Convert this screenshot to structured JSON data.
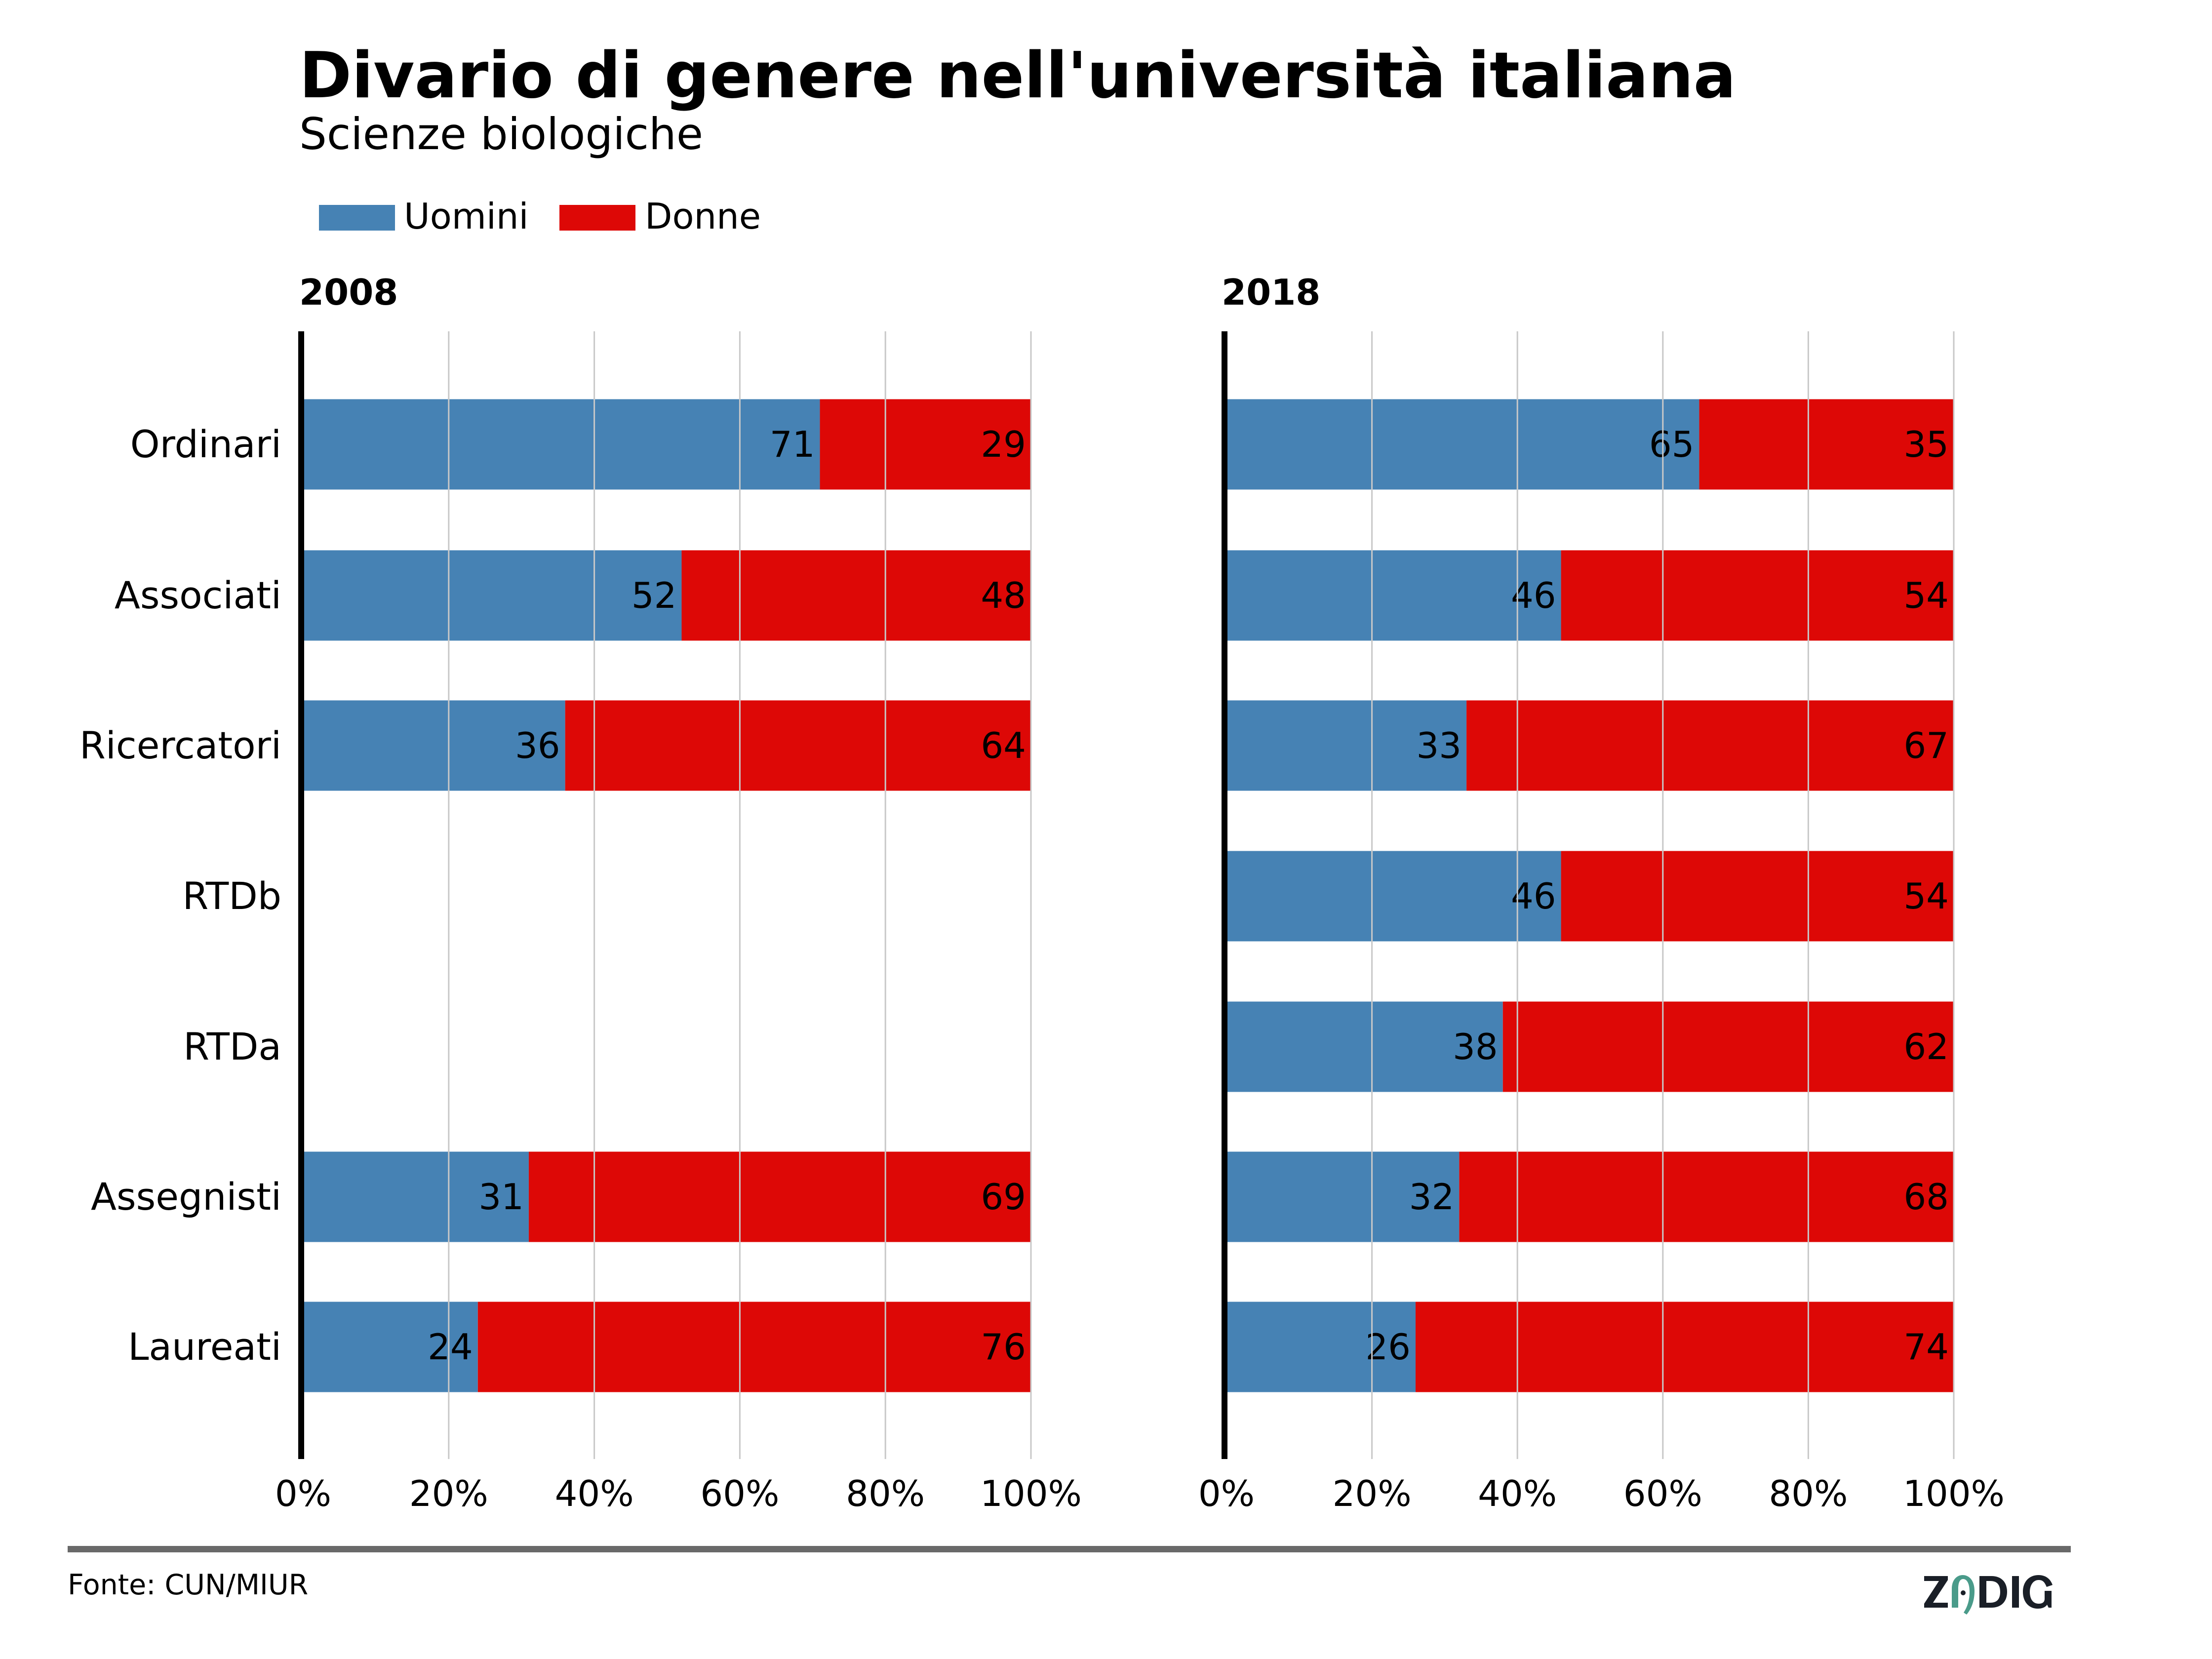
{
  "header": {
    "title": "Divario di genere nell'università italiana",
    "subtitle": "Scienze biologiche"
  },
  "legend": [
    {
      "label": "Uomini",
      "color": "#4682b4"
    },
    {
      "label": "Donne",
      "color": "#dd0806"
    }
  ],
  "footer": {
    "source": "Fonte: CUN/MIUR",
    "logo_text": "ZADIG",
    "logo_colors": {
      "text": "#1a1f27",
      "accent": "#4a9b8a"
    }
  },
  "chart_data": [
    {
      "type": "bar",
      "orientation": "horizontal",
      "stacked": true,
      "title": "2008",
      "categories": [
        "Ordinari",
        "Associati",
        "Ricercatori",
        "RTDb",
        "RTDa",
        "Assegnisti",
        "Laureati"
      ],
      "series": [
        {
          "name": "Uomini",
          "color": "#4682b4",
          "values": [
            71,
            52,
            36,
            null,
            null,
            31,
            24
          ]
        },
        {
          "name": "Donne",
          "color": "#dd0806",
          "values": [
            29,
            48,
            64,
            null,
            null,
            69,
            76
          ]
        }
      ],
      "xlim": [
        0,
        100
      ],
      "xticks": [
        "0%",
        "20%",
        "40%",
        "60%",
        "80%",
        "100%"
      ],
      "xlabel": "",
      "ylabel": "",
      "grid": "vertical"
    },
    {
      "type": "bar",
      "orientation": "horizontal",
      "stacked": true,
      "title": "2018",
      "categories": [
        "Ordinari",
        "Associati",
        "Ricercatori",
        "RTDb",
        "RTDa",
        "Assegnisti",
        "Laureati"
      ],
      "series": [
        {
          "name": "Uomini",
          "color": "#4682b4",
          "values": [
            65,
            46,
            33,
            46,
            38,
            32,
            26
          ]
        },
        {
          "name": "Donne",
          "color": "#dd0806",
          "values": [
            35,
            54,
            67,
            54,
            62,
            68,
            74
          ]
        }
      ],
      "xlim": [
        0,
        100
      ],
      "xticks": [
        "0%",
        "20%",
        "40%",
        "60%",
        "80%",
        "100%"
      ],
      "xlabel": "",
      "ylabel": "",
      "grid": "vertical"
    }
  ]
}
